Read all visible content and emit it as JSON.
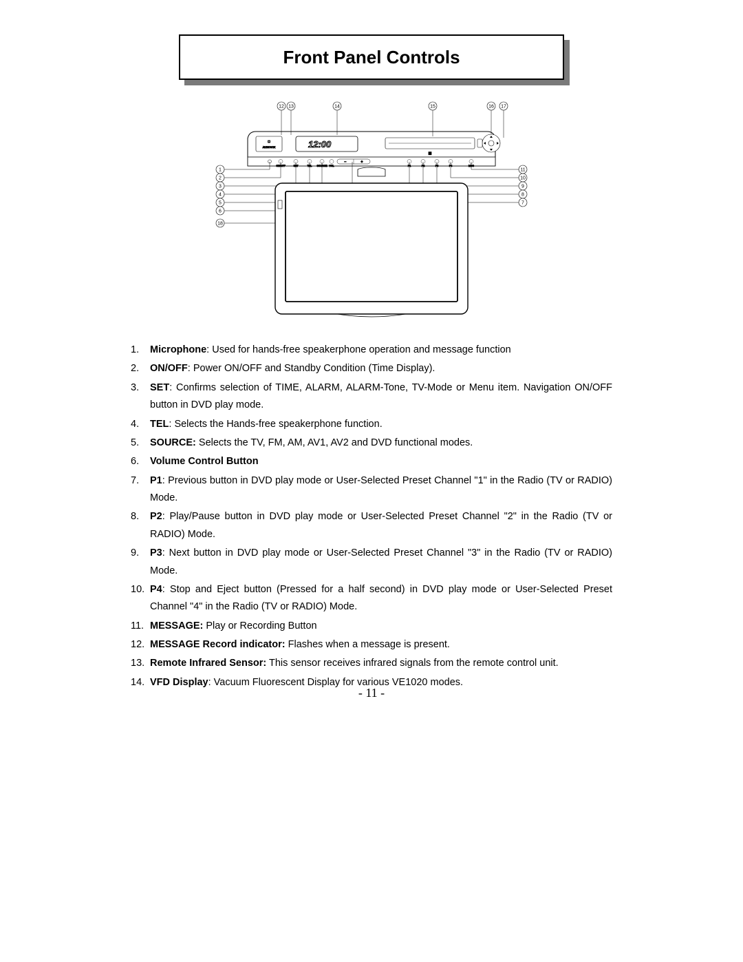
{
  "title": "Front Panel Controls",
  "page_number": "- 11 -",
  "diagram": {
    "vfd_text": "12:00",
    "top_labels": [
      "12",
      "13",
      "14",
      "15",
      "16",
      "17"
    ],
    "left_labels": [
      "1",
      "2",
      "3",
      "4",
      "5",
      "6",
      "18"
    ],
    "right_labels": [
      "11",
      "10",
      "9",
      "8",
      "7"
    ],
    "panel_buttons_left": [
      "ON/OFF",
      "SET",
      "TEL",
      "SOURCE",
      "VOL"
    ],
    "panel_buttons_right": [
      "P1",
      "P2",
      "P3",
      "P4",
      "MSG"
    ],
    "stroke_color": "#000000",
    "thin_stroke": 0.6,
    "med_stroke": 1.2,
    "bg_color": "#ffffff"
  },
  "items": [
    {
      "n": "1.",
      "bold": "Microphone",
      "rest": ": Used for hands-free speakerphone operation and message function"
    },
    {
      "n": "2.",
      "bold": "ON/OFF",
      "rest": ": Power ON/OFF and Standby Condition (Time Display)."
    },
    {
      "n": "3.",
      "bold": "SET",
      "rest": ": Confirms selection of TIME, ALARM, ALARM-Tone, TV-Mode or Menu item. Navigation ON/OFF button in DVD play mode."
    },
    {
      "n": "4.",
      "bold": "TEL",
      "rest": ": Selects the Hands-free speakerphone function."
    },
    {
      "n": "5.",
      "bold": "SOURCE:",
      "rest": " Selects the TV, FM, AM, AV1, AV2 and DVD functional modes."
    },
    {
      "n": "6.",
      "bold": "Volume Control Button",
      "rest": ""
    },
    {
      "n": "7.",
      "bold": "P1",
      "rest": ": Previous button in DVD play mode or User-Selected Preset Channel \"1\" in the Radio (TV or RADIO) Mode."
    },
    {
      "n": "8.",
      "bold": "P2",
      "rest": ": Play/Pause button in DVD play mode or User-Selected Preset Channel \"2\" in the Radio (TV or RADIO) Mode."
    },
    {
      "n": "9.",
      "bold": "P3",
      "rest": ": Next button in DVD play mode or User-Selected Preset Channel \"3\" in the Radio (TV or RADIO) Mode."
    },
    {
      "n": "10.",
      "bold": "P4",
      "rest": ": Stop and Eject button (Pressed for a half second) in DVD play mode or User-Selected Preset Channel \"4\" in the Radio (TV or RADIO) Mode."
    },
    {
      "n": "11.",
      "bold": "MESSAGE:",
      "rest": " Play or Recording Button"
    },
    {
      "n": "12.",
      "bold": "MESSAGE Record indicator:",
      "rest": " Flashes when a message is present."
    },
    {
      "n": "13.",
      "bold": "Remote Infrared Sensor:",
      "rest": " This sensor receives infrared signals from the remote control unit."
    },
    {
      "n": "14.",
      "bold": "VFD Display",
      "rest": ": Vacuum Fluorescent Display for various VE1020 modes."
    }
  ]
}
